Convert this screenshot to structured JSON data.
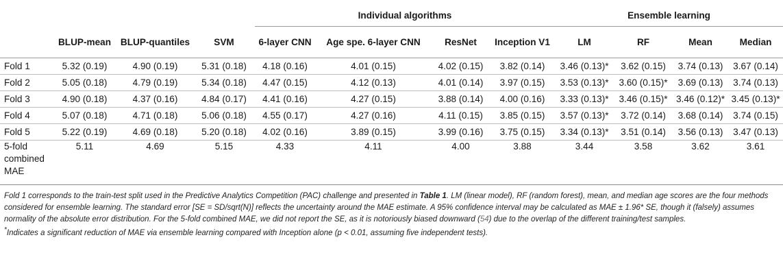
{
  "table": {
    "group_headers": {
      "individual": "Individual algorithms",
      "ensemble": "Ensemble learning"
    },
    "columns": [
      "BLUP-mean",
      "BLUP-quantiles",
      "SVM",
      "6-layer CNN",
      "Age spe. 6-layer CNN",
      "ResNet",
      "Inception V1",
      "LM",
      "RF",
      "Mean",
      "Median"
    ],
    "rows": [
      {
        "label": "Fold 1",
        "cells": [
          "5.32 (0.19)",
          "4.90 (0.19)",
          "5.31 (0.18)",
          "4.18 (0.16)",
          "4.01 (0.15)",
          "4.02 (0.15)",
          "3.82 (0.14)",
          "3.46 (0.13)*",
          "3.62 (0.15)",
          "3.74 (0.13)",
          "3.67 (0.14)"
        ]
      },
      {
        "label": "Fold 2",
        "cells": [
          "5.05 (0.18)",
          "4.79 (0.19)",
          "5.34 (0.18)",
          "4.47 (0.15)",
          "4.12 (0.13)",
          "4.01 (0.14)",
          "3.97 (0.15)",
          "3.53 (0.13)*",
          "3.60 (0.15)*",
          "3.69 (0.13)",
          "3.74 (0.13)"
        ]
      },
      {
        "label": "Fold 3",
        "cells": [
          "4.90 (0.18)",
          "4.37 (0.16)",
          "4.84 (0.17)",
          "4.41 (0.16)",
          "4.27 (0.15)",
          "3.88 (0.14)",
          "4.00 (0.16)",
          "3.33 (0.13)*",
          "3.46 (0.15)*",
          "3.46 (0.12)*",
          "3.45 (0.13)*"
        ]
      },
      {
        "label": "Fold 4",
        "cells": [
          "5.07 (0.18)",
          "4.71 (0.18)",
          "5.06 (0.18)",
          "4.55 (0.17)",
          "4.27 (0.16)",
          "4.11 (0.15)",
          "3.85 (0.15)",
          "3.57 (0.13)*",
          "3.72 (0.14)",
          "3.68 (0.14)",
          "3.74 (0.15)"
        ]
      },
      {
        "label": "Fold 5",
        "cells": [
          "5.22 (0.19)",
          "4.69 (0.18)",
          "5.20 (0.18)",
          "4.02 (0.16)",
          "3.89 (0.15)",
          "3.99 (0.16)",
          "3.75 (0.15)",
          "3.34 (0.13)*",
          "3.51 (0.14)",
          "3.56 (0.13)",
          "3.47 (0.13)"
        ]
      }
    ],
    "combined": {
      "label": "5-fold combined MAE",
      "cells": [
        "5.11",
        "4.69",
        "5.15",
        "4.33",
        "4.11",
        "4.00",
        "3.88",
        "3.44",
        "3.58",
        "3.62",
        "3.61"
      ]
    }
  },
  "notes": {
    "p1": "Fold 1 corresponds to the train-test split used in the Predictive Analytics Competition (PAC) challenge and presented in ",
    "p1_ref": "Table 1",
    "p2": ". LM (linear model), RF (random forest), mean, and median age scores are the four methods considered for ensemble learning. The standard error [SE = SD/sqrt(N)] reflects the uncertainty around the MAE estimate. A 95% confidence interval may be calculated as MAE ± 1.96",
    "p3": "* SE, though it (falsely) assumes normality of the absolute error distribution. For the 5-fold combined MAE, we did not report the SE, as it is notoriously biased downward (",
    "p3_cite": "54",
    "p4": ") due to the overlap of the different training/test samples.",
    "footnote_mark": "*",
    "footnote": "Indicates a significant reduction of MAE via ensemble learning compared with Inception alone (p < 0.01, assuming five independent tests)."
  }
}
